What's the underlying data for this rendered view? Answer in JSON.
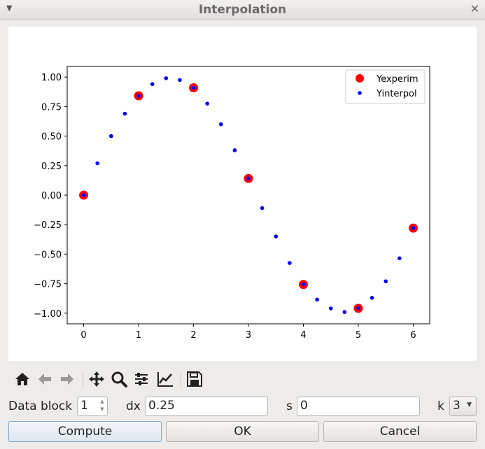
{
  "window": {
    "title": "Interpolation"
  },
  "toolbar": {
    "icons": [
      "home-icon",
      "back-arrow-icon",
      "forward-arrow-icon",
      "pan-icon",
      "zoom-icon",
      "subplots-config-icon",
      "axes-edit-icon",
      "save-icon"
    ]
  },
  "form": {
    "data_block_label": "Data block",
    "data_block_value": "1",
    "dx_label": "dx",
    "dx_value": "0.25",
    "s_label": "s",
    "s_value": "0",
    "k_label": "k",
    "k_value": "3"
  },
  "buttons": {
    "compute": "Compute",
    "ok": "OK",
    "cancel": "Cancel"
  },
  "chart_data": {
    "type": "scatter",
    "xlim": [
      -0.3,
      6.3
    ],
    "ylim": [
      -1.09,
      1.09
    ],
    "x_ticks": [
      0,
      1,
      2,
      3,
      4,
      5,
      6
    ],
    "x_tick_labels": [
      "0",
      "1",
      "2",
      "3",
      "4",
      "5",
      "6"
    ],
    "y_ticks": [
      1.0,
      0.75,
      0.5,
      0.25,
      0.0,
      -0.25,
      -0.5,
      -0.75,
      -1.0
    ],
    "y_tick_labels": [
      "1.00",
      "0.75",
      "0.50",
      "0.25",
      "0.00",
      "−0.25",
      "−0.50",
      "−0.75",
      "−1.00"
    ],
    "grid": false,
    "legend_position": "top-right",
    "series": [
      {
        "name": "Yexperim",
        "color": "#ff0000",
        "marker": "large-circle",
        "x": [
          0,
          1,
          2,
          3,
          4,
          5,
          6
        ],
        "y": [
          0.0,
          0.841,
          0.909,
          0.141,
          -0.757,
          -0.959,
          -0.279
        ]
      },
      {
        "name": "Yinterpol",
        "color": "#0000ff",
        "marker": "small-dot",
        "x": [
          0,
          0.25,
          0.5,
          0.75,
          1.0,
          1.25,
          1.5,
          1.75,
          2.0,
          2.25,
          2.5,
          2.75,
          3.0,
          3.25,
          3.5,
          3.75,
          4.0,
          4.25,
          4.5,
          4.75,
          5.0,
          5.25,
          5.5,
          5.75,
          6.0
        ],
        "y": [
          0.0,
          0.27,
          0.5,
          0.69,
          0.841,
          0.94,
          0.99,
          0.975,
          0.909,
          0.775,
          0.6,
          0.38,
          0.141,
          -0.11,
          -0.35,
          -0.575,
          -0.757,
          -0.885,
          -0.96,
          -0.99,
          -0.959,
          -0.87,
          -0.73,
          -0.535,
          -0.279
        ]
      }
    ]
  }
}
